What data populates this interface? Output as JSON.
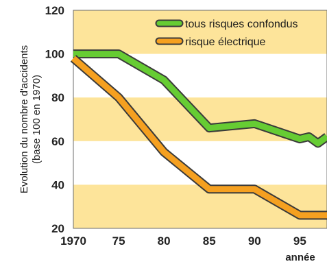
{
  "chart_data": {
    "type": "line",
    "xlabel": "année",
    "ylabel": "Evolution du nombre d'accidents",
    "ylabel_sub": "(base 100 en 1970)",
    "xlim": [
      1970,
      98
    ],
    "ylim": [
      20,
      120
    ],
    "x_ticks": [
      "1970",
      "75",
      "80",
      "85",
      "90",
      "95"
    ],
    "y_ticks": [
      "20",
      "40",
      "60",
      "80",
      "100",
      "120"
    ],
    "grid": false,
    "legend_position": "top-right",
    "colors": {
      "band": "#fde49a",
      "plot_bg": "#ffffff",
      "series_green": "#66cc33",
      "series_orange": "#f5a020",
      "outline": "#3a3a3a"
    },
    "series": [
      {
        "name": "tous risques confondus",
        "x": [
          1970,
          1972,
          1975,
          1980,
          1985,
          1990,
          1995,
          1996,
          1997,
          1998
        ],
        "y": [
          100,
          100,
          100,
          88,
          66,
          68,
          61,
          62,
          59,
          62
        ]
      },
      {
        "name": "risque électrique",
        "x": [
          1970,
          1975,
          1980,
          1985,
          1990,
          1995,
          1998
        ],
        "y": [
          98,
          80,
          55,
          38,
          38,
          26,
          26
        ]
      }
    ]
  }
}
